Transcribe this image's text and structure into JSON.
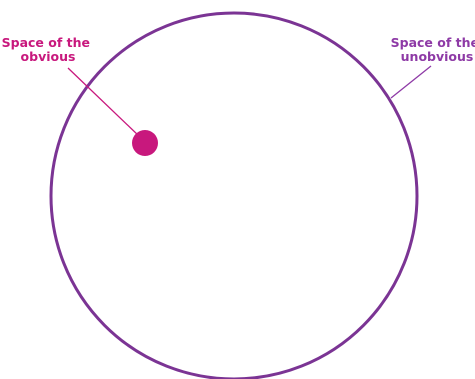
{
  "diagram": {
    "labels": {
      "obvious_line1": "Space of the",
      "obvious_line2": "obvious",
      "unobvious_line1": "Space of the",
      "unobvious_line2": "unobvious"
    },
    "colors": {
      "outer_circle": "#7b3494",
      "inner_dot": "#c8187d",
      "obvious_label": "#c8187d",
      "unobvious_label": "#8e3aa6",
      "obvious_leader": "#c8187d",
      "unobvious_leader": "#8e3aa6"
    }
  }
}
